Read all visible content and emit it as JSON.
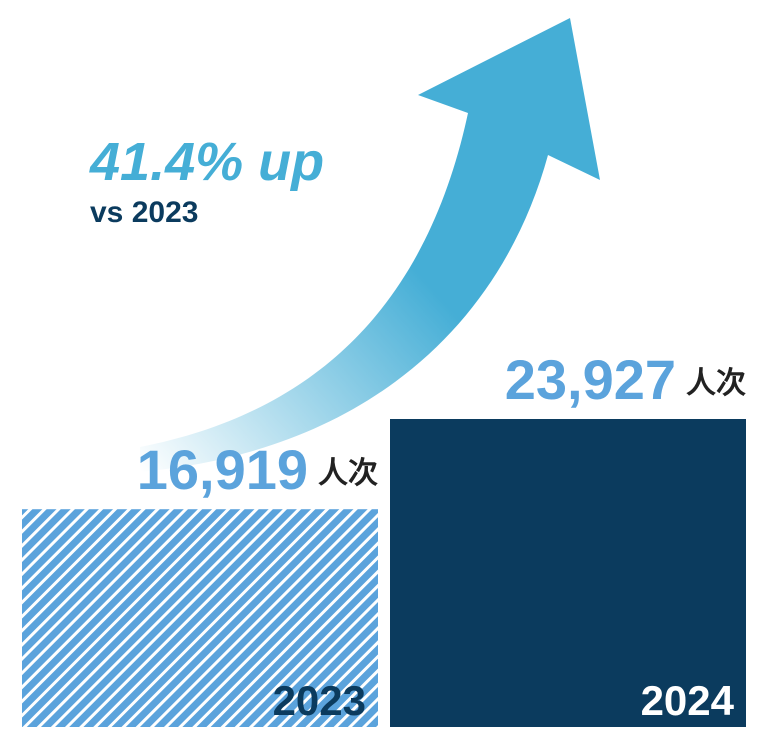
{
  "chart_data": {
    "type": "bar",
    "categories": [
      "2023",
      "2024"
    ],
    "values": [
      16919,
      23927
    ],
    "value_labels": [
      "16,919",
      "23,927"
    ],
    "unit": "人次",
    "colors": [
      "#5ba3dc",
      "#0b3b5e"
    ],
    "annotations": [
      "41.4% up",
      "vs 2023"
    ]
  }
}
